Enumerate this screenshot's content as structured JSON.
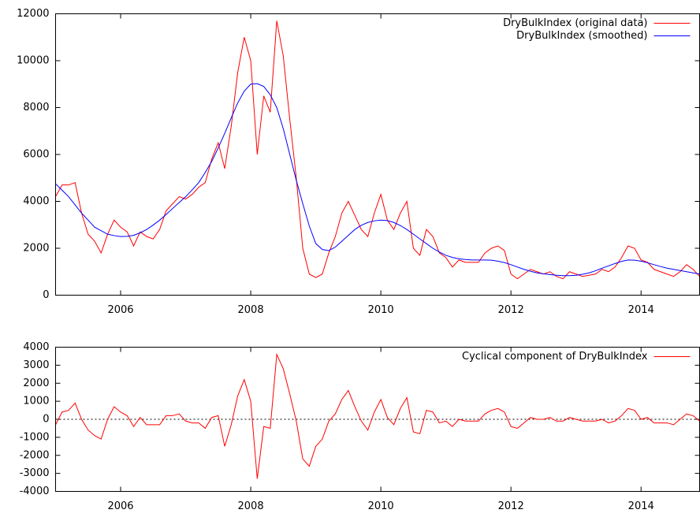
{
  "chart_data": [
    {
      "type": "line",
      "x": [
        2005.0,
        2005.1,
        2005.2,
        2005.3,
        2005.4,
        2005.5,
        2005.6,
        2005.7,
        2005.8,
        2005.9,
        2006.0,
        2006.1,
        2006.2,
        2006.3,
        2006.4,
        2006.5,
        2006.6,
        2006.7,
        2006.8,
        2006.9,
        2007.0,
        2007.1,
        2007.2,
        2007.3,
        2007.4,
        2007.5,
        2007.6,
        2007.7,
        2007.8,
        2007.9,
        2008.0,
        2008.1,
        2008.2,
        2008.3,
        2008.4,
        2008.5,
        2008.6,
        2008.7,
        2008.8,
        2008.9,
        2009.0,
        2009.1,
        2009.2,
        2009.3,
        2009.4,
        2009.5,
        2009.6,
        2009.7,
        2009.8,
        2009.9,
        2010.0,
        2010.1,
        2010.2,
        2010.3,
        2010.4,
        2010.5,
        2010.6,
        2010.7,
        2010.8,
        2010.9,
        2011.0,
        2011.1,
        2011.2,
        2011.3,
        2011.4,
        2011.5,
        2011.6,
        2011.7,
        2011.8,
        2011.9,
        2012.0,
        2012.1,
        2012.2,
        2012.3,
        2012.4,
        2012.5,
        2012.6,
        2012.7,
        2012.8,
        2012.9,
        2013.0,
        2013.1,
        2013.2,
        2013.3,
        2013.4,
        2013.5,
        2013.6,
        2013.7,
        2013.8,
        2013.9,
        2014.0,
        2014.1,
        2014.2,
        2014.3,
        2014.4,
        2014.5,
        2014.6,
        2014.7,
        2014.8,
        2014.9
      ],
      "series": [
        {
          "name": "DryBulkIndex (original data)",
          "color": "#ff0000",
          "values": [
            4200,
            4700,
            4700,
            4800,
            3500,
            2600,
            2300,
            1800,
            2600,
            3200,
            2900,
            2700,
            2100,
            2700,
            2500,
            2400,
            2800,
            3600,
            3900,
            4200,
            4100,
            4300,
            4600,
            4800,
            5800,
            6500,
            5400,
            7200,
            9500,
            11000,
            10000,
            6000,
            8500,
            7800,
            11700,
            10200,
            7500,
            5000,
            2000,
            900,
            750,
            900,
            1800,
            2500,
            3500,
            4000,
            3400,
            2800,
            2500,
            3500,
            4300,
            3200,
            2800,
            3500,
            4000,
            2000,
            1700,
            2800,
            2500,
            1800,
            1600,
            1200,
            1500,
            1400,
            1400,
            1400,
            1800,
            2000,
            2100,
            1900,
            900,
            700,
            900,
            1100,
            1000,
            900,
            1000,
            800,
            700,
            1000,
            900,
            800,
            850,
            900,
            1100,
            1000,
            1200,
            1600,
            2100,
            2000,
            1500,
            1400,
            1100,
            1000,
            900,
            800,
            1000,
            1300,
            1100,
            800
          ]
        },
        {
          "name": "DryBulkIndex (smoothed)",
          "color": "#0000ff",
          "values": [
            4750,
            4480,
            4200,
            3850,
            3500,
            3200,
            2900,
            2750,
            2600,
            2540,
            2500,
            2510,
            2550,
            2660,
            2800,
            2990,
            3200,
            3440,
            3700,
            3950,
            4200,
            4490,
            4800,
            5230,
            5700,
            6280,
            6900,
            7560,
            8200,
            8700,
            9000,
            9020,
            8900,
            8550,
            8000,
            7100,
            6000,
            4900,
            3900,
            2950,
            2200,
            1950,
            1900,
            2050,
            2300,
            2550,
            2800,
            2980,
            3100,
            3170,
            3200,
            3180,
            3100,
            2970,
            2800,
            2600,
            2400,
            2200,
            2000,
            1840,
            1700,
            1610,
            1550,
            1520,
            1500,
            1500,
            1500,
            1490,
            1450,
            1390,
            1300,
            1200,
            1100,
            1020,
            950,
            910,
            880,
            850,
            830,
            830,
            850,
            890,
            950,
            1040,
            1150,
            1250,
            1350,
            1440,
            1500,
            1490,
            1450,
            1380,
            1300,
            1220,
            1150,
            1100,
            1050,
            1000,
            950,
            900
          ]
        }
      ],
      "xlim": [
        2005.0,
        2014.9
      ],
      "xticks": [
        2006,
        2008,
        2010,
        2012,
        2014
      ],
      "ylim": [
        0,
        12000
      ],
      "yticks": [
        0,
        2000,
        4000,
        6000,
        8000,
        10000,
        12000
      ],
      "legend": "top-right"
    },
    {
      "type": "line",
      "x": [
        2005.0,
        2005.1,
        2005.2,
        2005.3,
        2005.4,
        2005.5,
        2005.6,
        2005.7,
        2005.8,
        2005.9,
        2006.0,
        2006.1,
        2006.2,
        2006.3,
        2006.4,
        2006.5,
        2006.6,
        2006.7,
        2006.8,
        2006.9,
        2007.0,
        2007.1,
        2007.2,
        2007.3,
        2007.4,
        2007.5,
        2007.6,
        2007.7,
        2007.8,
        2007.9,
        2008.0,
        2008.1,
        2008.2,
        2008.3,
        2008.4,
        2008.5,
        2008.6,
        2008.7,
        2008.8,
        2008.9,
        2009.0,
        2009.1,
        2009.2,
        2009.3,
        2009.4,
        2009.5,
        2009.6,
        2009.7,
        2009.8,
        2009.9,
        2010.0,
        2010.1,
        2010.2,
        2010.3,
        2010.4,
        2010.5,
        2010.6,
        2010.7,
        2010.8,
        2010.9,
        2011.0,
        2011.1,
        2011.2,
        2011.3,
        2011.4,
        2011.5,
        2011.6,
        2011.7,
        2011.8,
        2011.9,
        2012.0,
        2012.1,
        2012.2,
        2012.3,
        2012.4,
        2012.5,
        2012.6,
        2012.7,
        2012.8,
        2012.9,
        2013.0,
        2013.1,
        2013.2,
        2013.3,
        2013.4,
        2013.5,
        2013.6,
        2013.7,
        2013.8,
        2013.9,
        2014.0,
        2014.1,
        2014.2,
        2014.3,
        2014.4,
        2014.5,
        2014.6,
        2014.7,
        2014.8,
        2014.9
      ],
      "series": [
        {
          "name": "Cyclical component of DryBulkIndex",
          "color": "#ff0000",
          "values": [
            -300,
            400,
            500,
            900,
            0,
            -600,
            -900,
            -1100,
            0,
            700,
            400,
            200,
            -400,
            100,
            -300,
            -300,
            -300,
            200,
            200,
            300,
            -100,
            -200,
            -200,
            -500,
            100,
            200,
            -1500,
            -300,
            1300,
            2200,
            1000,
            -3300,
            -400,
            -500,
            3600,
            2800,
            1400,
            -100,
            -2200,
            -2600,
            -1500,
            -1100,
            -100,
            300,
            1100,
            1600,
            700,
            -100,
            -600,
            400,
            1100,
            100,
            -300,
            600,
            1200,
            -700,
            -800,
            500,
            400,
            -200,
            -100,
            -400,
            0,
            -100,
            -100,
            -100,
            300,
            500,
            600,
            400,
            -400,
            -500,
            -200,
            100,
            0,
            0,
            100,
            -100,
            -100,
            100,
            0,
            -100,
            -100,
            -100,
            0,
            -200,
            -100,
            200,
            600,
            500,
            0,
            100,
            -200,
            -200,
            -200,
            -300,
            0,
            300,
            200,
            -100
          ]
        }
      ],
      "xlim": [
        2005.0,
        2014.9
      ],
      "xticks": [
        2006,
        2008,
        2010,
        2012,
        2014
      ],
      "ylim": [
        -4000,
        4000
      ],
      "yticks": [
        -4000,
        -3000,
        -2000,
        -1000,
        0,
        1000,
        2000,
        3000,
        4000
      ],
      "zero_line": true,
      "legend": "top-right"
    }
  ]
}
